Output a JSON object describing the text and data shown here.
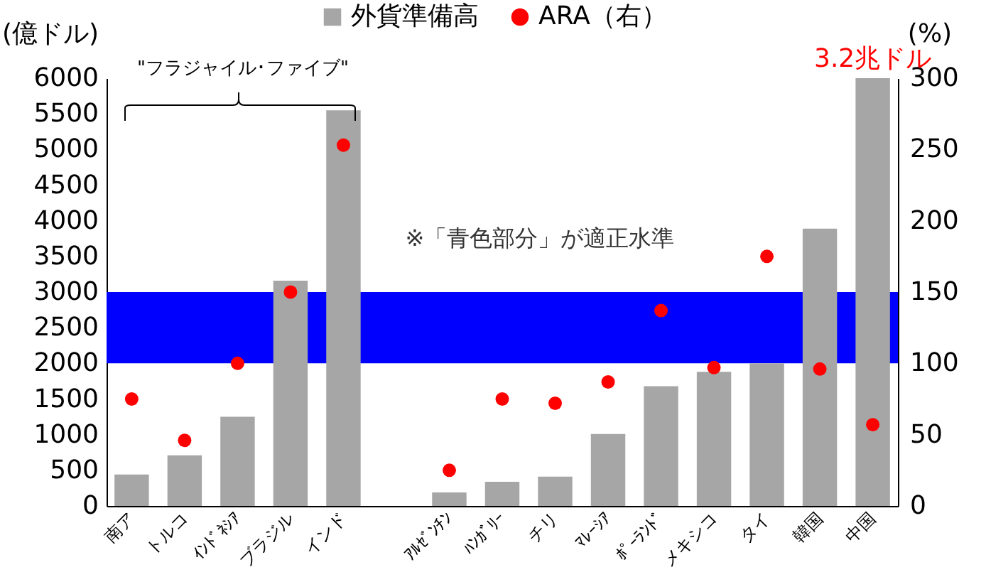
{
  "chart_data": {
    "type": "bar",
    "categories": [
      "南ア",
      "トルコ",
      "ｲﾝﾄﾞﾈｼｱ",
      "ブラジル",
      "インド",
      null,
      "ｱﾙｾﾞﾝﾁﾝ",
      "ﾊﾝｶﾞﾘｰ",
      "チリ",
      "ﾏﾚｰｼｱ",
      "ﾎﾟｰﾗﾝﾄﾞ",
      "メキシコ",
      "タイ",
      "韓国",
      "中国"
    ],
    "series": [
      {
        "name": "外貨準備高",
        "color": "#a6a6a6",
        "values": [
          440,
          710,
          1250,
          3160,
          5550,
          null,
          190,
          340,
          410,
          1010,
          1680,
          1880,
          2000,
          3890,
          6000
        ]
      },
      {
        "name": "ARA（右）",
        "type": "scatter",
        "axis": "y2",
        "marker": "circle",
        "color": "#ff0000",
        "values": [
          75,
          46,
          100,
          150,
          253,
          null,
          25,
          75,
          72,
          87,
          137,
          97,
          175,
          96,
          57
        ]
      }
    ],
    "ylabel": "(億ドル)",
    "y2label": "(%)",
    "ylim": [
      0,
      6000
    ],
    "yticks": [
      0,
      500,
      1000,
      1500,
      2000,
      2500,
      3000,
      3500,
      4000,
      4500,
      5000,
      5500,
      6000
    ],
    "y2lim": [
      0,
      300
    ],
    "y2ticks": [
      0,
      50,
      100,
      150,
      200,
      250,
      300
    ],
    "bands": [
      {
        "axis": "y",
        "from": 2000,
        "to": 3000,
        "color": "#0000ff"
      }
    ],
    "annotations": [
      "\"フラジャイル･ファイブ\"",
      "※「青色部分」が適正水準",
      {
        "text": "3.2兆ドル",
        "x": "中国",
        "y": 6000
      }
    ],
    "legend": "top",
    "grid": false
  }
}
